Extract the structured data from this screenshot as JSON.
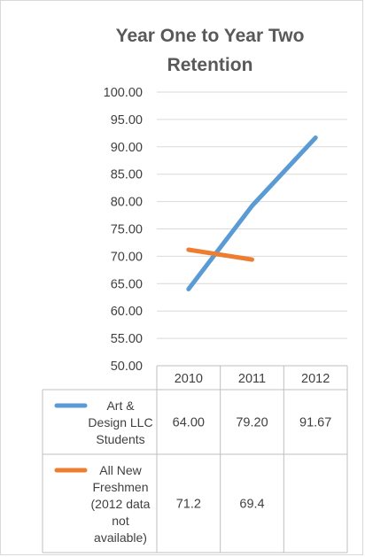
{
  "chart_data": {
    "type": "line",
    "title": "Year One to Year Two Retention",
    "title_lines": [
      "Year One to Year Two",
      "Retention"
    ],
    "categories": [
      "2010",
      "2011",
      "2012"
    ],
    "ylim": [
      50,
      100
    ],
    "y_ticks": [
      "50.00",
      "55.00",
      "60.00",
      "65.00",
      "70.00",
      "75.00",
      "80.00",
      "85.00",
      "90.00",
      "95.00",
      "100.00"
    ],
    "gridlines": true,
    "legend_placement": "data-table",
    "series": [
      {
        "name": "Art & Design LLC Students",
        "name_lines": [
          "Art &",
          "Design LLC",
          "Students"
        ],
        "color": "#5b9bd5",
        "values": [
          64.0,
          79.2,
          91.67
        ],
        "table_values": [
          "64.00",
          "79.20",
          "91.67"
        ]
      },
      {
        "name": "All New Freshmen (2012 data not available)",
        "name_lines": [
          "All New",
          "Freshmen",
          "(2012 data",
          "not",
          "available)"
        ],
        "color": "#ed7d31",
        "values": [
          71.2,
          69.4,
          null
        ],
        "table_values": [
          "71.2",
          "69.4",
          ""
        ]
      }
    ]
  }
}
